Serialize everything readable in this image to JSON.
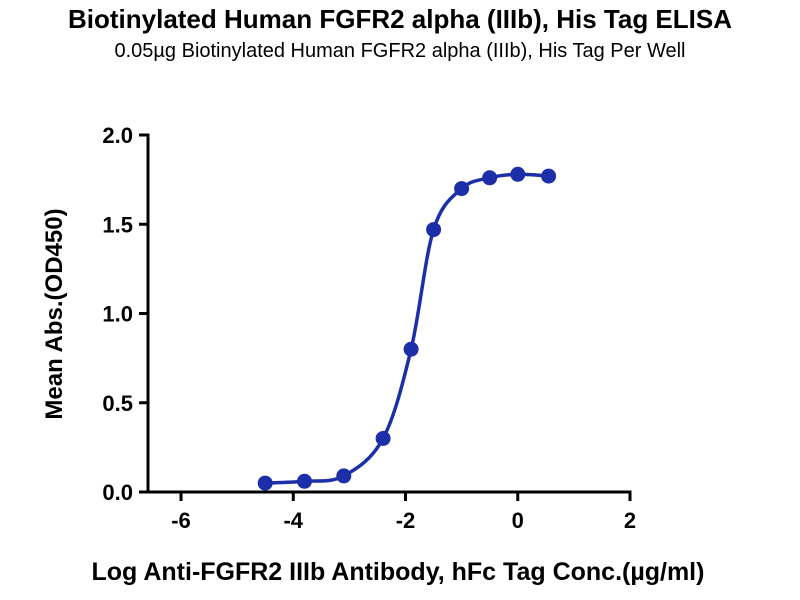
{
  "chart_data": {
    "type": "scatter",
    "curve_style": "smooth sigmoidal fit line through points",
    "title": "Biotinylated Human FGFR2 alpha (IIIb), His Tag ELISA",
    "subtitle": "0.05µg Biotinylated Human FGFR2 alpha (IIIb), His Tag Per Well",
    "xlabel": "Log Anti-FGFR2 IIIb Antibody, hFc Tag Conc.(µg/ml)",
    "ylabel": "Mean Abs.(OD450)",
    "x": [
      -4.5,
      -3.8,
      -3.1,
      -2.4,
      -1.9,
      -1.5,
      -1.0,
      -0.5,
      0.0,
      0.55
    ],
    "y": [
      0.05,
      0.06,
      0.09,
      0.3,
      0.8,
      1.47,
      1.7,
      1.76,
      1.78,
      1.77
    ],
    "xlim": [
      -6,
      2
    ],
    "ylim": [
      0,
      2
    ],
    "xticks": [
      -6,
      -4,
      -2,
      0,
      2
    ],
    "xtick_labels": [
      "-6",
      "-4",
      "-2",
      "0",
      "2"
    ],
    "yticks": [
      0,
      0.5,
      1,
      1.5,
      2
    ],
    "ytick_labels": [
      "0.0",
      "0.5",
      "1.0",
      "1.5",
      "2.0"
    ],
    "grid": false,
    "legend": null,
    "colors": {
      "series": "#1C2FA8",
      "axis": "#000000",
      "text": "#000000",
      "background": "#ffffff"
    }
  }
}
